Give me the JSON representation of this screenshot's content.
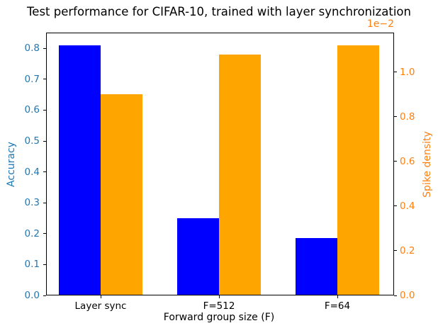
{
  "title": "Test performance for CIFAR-10, trained with layer synchronization",
  "chart_data": {
    "type": "bar",
    "title": "Test performance for CIFAR-10, trained with layer synchronization",
    "categories": [
      "Layer sync",
      "F=512",
      "F=64"
    ],
    "series": [
      {
        "name": "Accuracy",
        "axis": "left",
        "color": "#0000ff",
        "values": [
          0.81,
          0.25,
          0.185
        ]
      },
      {
        "name": "Spike density",
        "axis": "right",
        "color": "#ffa500",
        "values": [
          0.9,
          1.08,
          1.12
        ],
        "display_multiplier": "1e-2",
        "actual_values": [
          0.009,
          0.0108,
          0.0112
        ]
      }
    ],
    "x_axis": {
      "label": "Forward group size (F)"
    },
    "left_axis": {
      "label": "Accuracy",
      "tick_color": "#1f77b4",
      "tick_labels": [
        "0.0",
        "0.1",
        "0.2",
        "0.3",
        "0.4",
        "0.5",
        "0.6",
        "0.7",
        "0.8"
      ],
      "range": [
        0,
        0.851
      ]
    },
    "right_axis": {
      "label": "Spike density",
      "tick_color": "#ff7f0e",
      "tick_labels": [
        "0.0",
        "0.2",
        "0.4",
        "0.6",
        "0.8",
        "1.0"
      ],
      "range": [
        0,
        1.177
      ],
      "offset_label": "1e−2"
    },
    "grid": false,
    "legend": "none"
  }
}
